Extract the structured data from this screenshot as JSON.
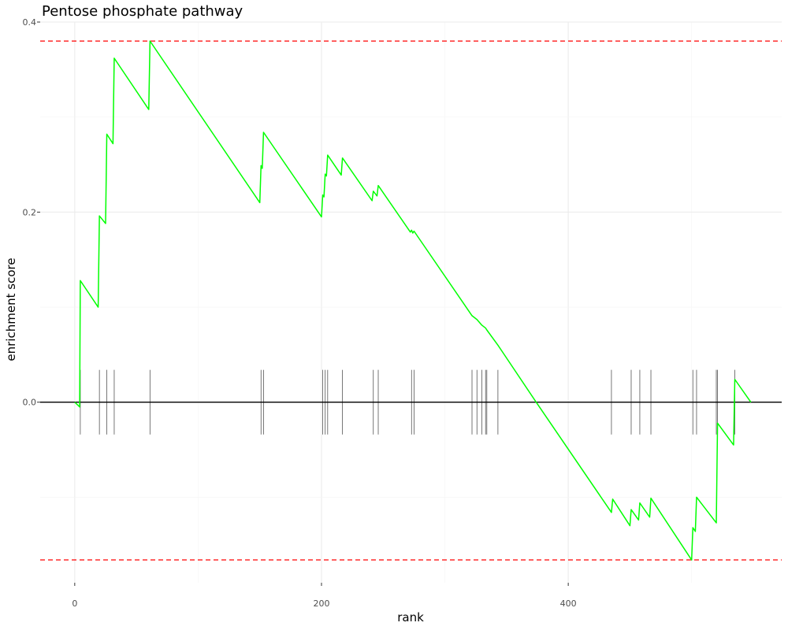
{
  "chart_data": {
    "type": "line",
    "title": "Pentose phosphate pathway",
    "xlabel": "rank",
    "ylabel": "enrichment score",
    "xlim": [
      -28,
      573
    ],
    "ylim": [
      -0.19,
      0.4
    ],
    "x_ticks": [
      {
        "value": 0,
        "label": "0"
      },
      {
        "value": 200,
        "label": "200"
      },
      {
        "value": 400,
        "label": "400"
      }
    ],
    "y_ticks": [
      {
        "value": 0.0,
        "label": "0.0"
      },
      {
        "value": 0.2,
        "label": "0.2"
      },
      {
        "value": 0.4,
        "label": "0.4"
      }
    ],
    "grid": true,
    "line_color": "#00ff00",
    "threshold_color": "#ff0000",
    "zero_line_color": "#000000",
    "thresholds": [
      0.38,
      -0.166
    ],
    "series": [
      {
        "points": [
          [
            0,
            0.0
          ],
          [
            4,
            -0.005
          ],
          [
            4.5,
            0.128
          ],
          [
            19,
            0.1
          ],
          [
            20,
            0.196
          ],
          [
            25,
            0.188
          ],
          [
            26,
            0.282
          ],
          [
            31,
            0.272
          ],
          [
            32,
            0.362
          ],
          [
            60,
            0.308
          ],
          [
            61,
            0.38
          ],
          [
            150,
            0.21
          ],
          [
            151,
            0.249
          ],
          [
            152,
            0.246
          ],
          [
            153,
            0.284
          ],
          [
            200,
            0.195
          ],
          [
            201,
            0.218
          ],
          [
            202,
            0.216
          ],
          [
            203,
            0.24
          ],
          [
            204,
            0.238
          ],
          [
            205,
            0.26
          ],
          [
            216,
            0.239
          ],
          [
            217,
            0.257
          ],
          [
            241,
            0.212
          ],
          [
            242,
            0.222
          ],
          [
            245,
            0.217
          ],
          [
            246,
            0.228
          ],
          [
            272,
            0.179
          ],
          [
            273,
            0.181
          ],
          [
            274,
            0.178
          ],
          [
            275,
            0.18
          ],
          [
            322,
            0.091
          ],
          [
            326,
            0.087
          ],
          [
            330,
            0.081
          ],
          [
            333,
            0.078
          ],
          [
            334,
            0.076
          ],
          [
            343,
            0.06
          ],
          [
            374,
            0.0
          ],
          [
            435,
            -0.116
          ],
          [
            436,
            -0.102
          ],
          [
            450,
            -0.13
          ],
          [
            451,
            -0.113
          ],
          [
            457,
            -0.124
          ],
          [
            458,
            -0.106
          ],
          [
            466,
            -0.121
          ],
          [
            467,
            -0.101
          ],
          [
            500,
            -0.166
          ],
          [
            501,
            -0.132
          ],
          [
            503,
            -0.136
          ],
          [
            504,
            -0.1
          ],
          [
            520,
            -0.127
          ],
          [
            521,
            -0.022
          ],
          [
            534,
            -0.045
          ],
          [
            535,
            0.024
          ],
          [
            548,
            0.0
          ]
        ]
      }
    ],
    "gene_hits": [
      4.5,
      20,
      26,
      32,
      61,
      151,
      153,
      201,
      203,
      205,
      217,
      242,
      246,
      273,
      275,
      322,
      326,
      330,
      333,
      334,
      343,
      435,
      451,
      458,
      467,
      501,
      504,
      520,
      521,
      535
    ]
  }
}
